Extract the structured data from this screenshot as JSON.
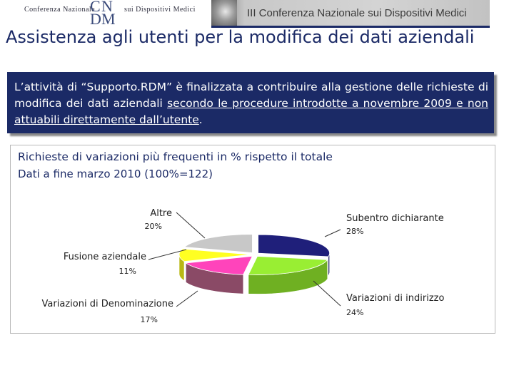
{
  "header": {
    "logo_left_text": "Conferenza Nazionale",
    "logo_mark": [
      "C",
      "N",
      "D",
      "M"
    ],
    "logo_right_text": "sui Dispositivi Medici",
    "banner_text": "III Conferenza Nazionale sui Dispositivi Medici",
    "colors": {
      "brand": "#1b2a66"
    }
  },
  "title": "Assistenza agli utenti per la modifica dei dati aziendali",
  "intro": {
    "before": "L’attività di “Supporto.RDM” è finalizzata a contribuire alla gestione delle richieste di modifica dei dati aziendali ",
    "underlined": "secondo le procedure introdotte a novembre 2009 e non attuabili direttamente dall’utente",
    "after": "."
  },
  "chart_data": {
    "type": "pie",
    "title": "Richieste di variazioni più frequenti in % rispetto il totale",
    "subtitle": "Dati a fine marzo 2010 (100%=122)",
    "categories": [
      "Subentro dichiarante",
      "Variazioni di indirizzo",
      "Variazioni di Denominazione",
      "Fusione aziendale",
      "Altre"
    ],
    "values": [
      28,
      24,
      17,
      11,
      20
    ],
    "value_labels": [
      "28%",
      "24%",
      "17%",
      "11%",
      "20%"
    ],
    "colors": [
      "#1f1f7a",
      "#99ee33",
      "#ff44bb",
      "#ffff22",
      "#c8c8c8"
    ],
    "side_colors": [
      "#16165c",
      "#6fb022",
      "#8a4a66",
      "#b8b814",
      "#9a9a9a"
    ],
    "style": "3d-exploded"
  }
}
